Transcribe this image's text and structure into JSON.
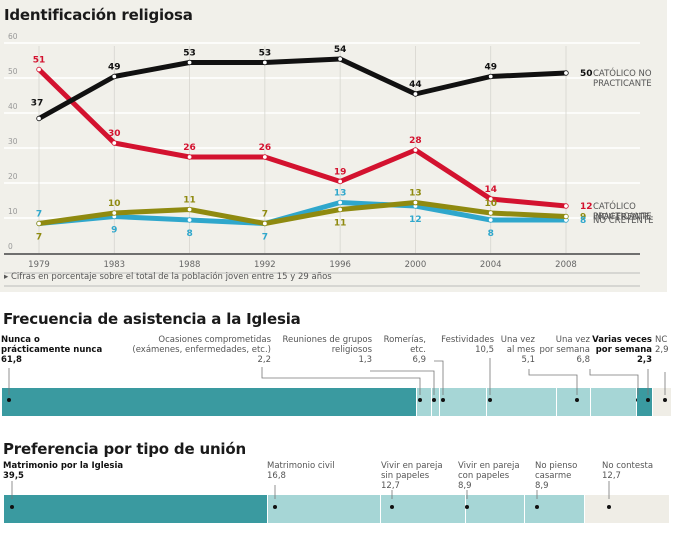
{
  "chart_data": [
    {
      "type": "line",
      "title": "Identificación religiosa",
      "x": [
        "1979",
        "1983",
        "1988",
        "1992",
        "1996",
        "2000",
        "2004",
        "2008"
      ],
      "ylim": [
        0,
        60
      ],
      "yticks": [
        "0",
        "10",
        "20",
        "30",
        "40",
        "50",
        "60"
      ],
      "grid": true,
      "note": "Cifras en porcentaje sobre el total de la población joven entre 15 y 29 años",
      "series": [
        {
          "name": "CATÓLICO NO PRACTICANTE",
          "label_lines": [
            "CATÓLICO NO",
            "PRACTICANTE"
          ],
          "color": "#111111",
          "values": [
            37,
            49,
            53,
            53,
            54,
            44,
            49,
            50
          ],
          "label_pos": [
            "above",
            "above",
            "above",
            "above",
            "above",
            "above",
            "above",
            "right"
          ]
        },
        {
          "name": "CATÓLICO PRACTICANTE",
          "label_lines": [
            "CATÓLICO",
            "PRACTICANTE"
          ],
          "color": "#d3122f",
          "values": [
            51,
            30,
            26,
            26,
            19,
            28,
            14,
            12
          ],
          "label_pos": [
            "above",
            "above",
            "above",
            "above",
            "above",
            "above",
            "above",
            "right"
          ]
        },
        {
          "name": "INDIFERENTE",
          "label_lines": [
            "INDIFERENTE"
          ],
          "color": "#8f8a10",
          "values": [
            7,
            10,
            11,
            7,
            11,
            13,
            10,
            9
          ],
          "label_pos": [
            "below",
            "above",
            "above",
            "above",
            "below",
            "above",
            "above",
            "right"
          ]
        },
        {
          "name": "NO CREYENTE",
          "label_lines": [
            "NO CREYENTE"
          ],
          "color": "#2fa7cc",
          "values": [
            7,
            9,
            8,
            7,
            13,
            12,
            8,
            8
          ],
          "label_pos": [
            "above",
            "below",
            "below",
            "below",
            "above",
            "below",
            "below",
            "right"
          ]
        }
      ]
    },
    {
      "type": "bar",
      "title": "Frecuencia de asistencia a la Iglesia",
      "categories": [
        "Nunca o prácticamente nunca",
        "Ocasiones comprometidas (exámenes, enfermedades, etc.)",
        "Reuniones de grupos religiosos",
        "Romerías, etc.",
        "Festividades",
        "Una vez al mes",
        "Una vez por semana",
        "Varias veces por semana",
        "NC"
      ],
      "values": [
        61.8,
        2.2,
        1.3,
        6.9,
        10.5,
        5.1,
        6.8,
        2.3,
        2.9
      ],
      "value_labels": [
        "61,8",
        "2,2",
        "1,3",
        "6,9",
        "10,5",
        "5,1",
        "6,8",
        "2,3",
        "2,9"
      ],
      "label_lines": [
        [
          "Nunca o",
          "prácticamente nunca"
        ],
        [
          "Ocasiones comprometidas",
          "(exámenes, enfermedades, etc.)"
        ],
        [
          "Reuniones de grupos",
          "religiosos"
        ],
        [
          "Romerías,",
          "etc."
        ],
        [
          "Festividades"
        ],
        [
          "Una vez",
          "al mes"
        ],
        [
          "Una vez",
          "por semana"
        ],
        [
          "Varias veces",
          "por semana"
        ],
        [
          "NC"
        ]
      ],
      "colors": [
        "#3a9aa0",
        "#a6d6d6",
        "#a6d6d6",
        "#a6d6d6",
        "#a6d6d6",
        "#a6d6d6",
        "#a6d6d6",
        "#3a9aa0",
        "#efede6"
      ]
    },
    {
      "type": "bar",
      "title": "Preferencia por tipo de unión",
      "categories": [
        "Matrimonio por la Iglesia",
        "Matrimonio civil",
        "Vivir en pareja sin papeles",
        "Vivir en pareja con papeles",
        "No pienso casarme",
        "No contesta"
      ],
      "values": [
        39.5,
        16.8,
        12.7,
        8.9,
        8.9,
        12.7
      ],
      "value_labels": [
        "39,5",
        "16,8",
        "12,7",
        "8,9",
        "8,9",
        "12,7"
      ],
      "label_lines": [
        [
          "Matrimonio por la Iglesia"
        ],
        [
          "Matrimonio civil"
        ],
        [
          "Vivir en pareja",
          "sin papeles"
        ],
        [
          "Vivir en pareja",
          "con papeles"
        ],
        [
          "No pienso",
          "casarme"
        ],
        [
          "No contesta"
        ]
      ],
      "colors": [
        "#3a9aa0",
        "#a6d6d6",
        "#a6d6d6",
        "#a6d6d6",
        "#a6d6d6",
        "#efede6"
      ]
    }
  ],
  "titles": {
    "line": "Identificación religiosa",
    "freq": "Frecuencia de asistencia a la Iglesia",
    "union": "Preferencia por tipo de unión"
  },
  "note": "Cifras en porcentaje sobre el total de la población joven entre 15 y 29 años"
}
